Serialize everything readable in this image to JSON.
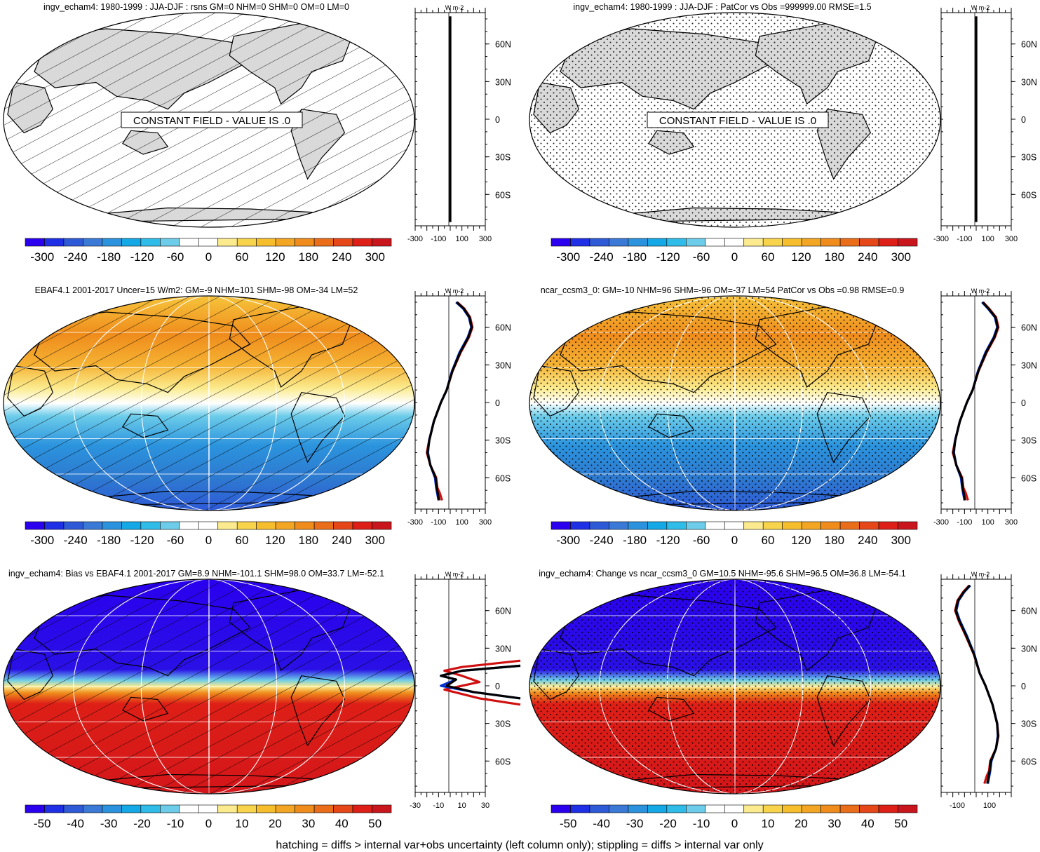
{
  "footer": "hatching = diffs > internal var+obs uncertainty (left column only); stippling = diffs > internal var only",
  "colors": {
    "land": "#d9d9d9",
    "colorbar": [
      "#2a00ee",
      "#1f2fe6",
      "#2e5ad8",
      "#3a7ad6",
      "#2b93dd",
      "#14a9e6",
      "#2fbce8",
      "#6ccce9",
      "#ffffff",
      "#ffffff",
      "#fbeb8e",
      "#f8d44c",
      "#f6be2d",
      "#f3a524",
      "#ef8c1c",
      "#ea6e19",
      "#e54718",
      "#dd1f17",
      "#c9161c"
    ]
  },
  "panels": [
    {
      "id": "p1",
      "title": "ingv_echam4: 1980-1999 : JJA-DJF : rsns GM=0 NHM=0 SHM=0 OM=0 LM=0",
      "field": "constant",
      "pattern": "hatch",
      "constant_label": "CONSTANT FIELD - VALUE IS .0",
      "colorbar_labels": [
        "-300",
        "-240",
        "-180",
        "-120",
        "-60",
        "0",
        "60",
        "120",
        "180",
        "240",
        "300"
      ],
      "profile_xlim": [
        -300,
        300
      ],
      "profile_ticks": [
        "-300",
        "-100",
        "100",
        "300"
      ],
      "profile_units": "W m-2",
      "profile_series": [
        {
          "color": "#1a1a80",
          "x": [
            0,
            0
          ],
          "lat": [
            82,
            -82
          ]
        },
        {
          "color": "#000000",
          "x": [
            0,
            0
          ],
          "lat": [
            82,
            -82
          ]
        }
      ]
    },
    {
      "id": "p2",
      "title": "ingv_echam4: 1980-1999 : JJA-DJF : PatCor vs Obs =999999.00 RMSE=1.5",
      "field": "constant",
      "pattern": "stipple",
      "constant_label": "CONSTANT FIELD - VALUE IS .0",
      "colorbar_labels": [
        "-300",
        "-240",
        "-180",
        "-120",
        "-60",
        "0",
        "60",
        "120",
        "180",
        "240",
        "300"
      ],
      "profile_xlim": [
        -300,
        300
      ],
      "profile_ticks": [
        "-300",
        "-100",
        "100",
        "300"
      ],
      "profile_units": "W m-2",
      "profile_series": [
        {
          "color": "#d01010",
          "x": [
            0,
            0
          ],
          "lat": [
            82,
            -82
          ]
        },
        {
          "color": "#000000",
          "x": [
            0,
            0
          ],
          "lat": [
            82,
            -82
          ]
        }
      ]
    },
    {
      "id": "p3",
      "title": "EBAF4.1 2001-2017 Uncer=15 W/m2: GM=-9 NHM=101 SHM=-98 OM=-34 LM=52",
      "field": "seasonal",
      "pattern": "hatch",
      "colorbar_labels": [
        "-300",
        "-240",
        "-180",
        "-120",
        "-60",
        "0",
        "60",
        "120",
        "180",
        "240",
        "300"
      ],
      "profile_xlim": [
        -300,
        300
      ],
      "profile_ticks": [
        "-300",
        "-100",
        "100",
        "300"
      ],
      "profile_units": "W m-2",
      "profile_series": [
        {
          "color": "#d01010",
          "x": [
            60,
            120,
            170,
            190,
            160,
            90,
            20,
            -30,
            -80,
            -140,
            -180,
            -200,
            -170,
            -120,
            -110,
            -90,
            -70
          ],
          "lat": [
            80,
            75,
            68,
            60,
            52,
            40,
            25,
            10,
            0,
            -15,
            -30,
            -40,
            -50,
            -60,
            -68,
            -72,
            -78
          ]
        },
        {
          "color": "#0030d0",
          "x": [
            50,
            110,
            160,
            180,
            150,
            80,
            15,
            -30,
            -80,
            -140,
            -180,
            -190,
            -170,
            -130,
            -120,
            -100
          ],
          "lat": [
            80,
            75,
            68,
            60,
            52,
            40,
            25,
            10,
            0,
            -15,
            -30,
            -40,
            -50,
            -60,
            -68,
            -78
          ]
        },
        {
          "color": "#000000",
          "x": [
            55,
            115,
            165,
            185,
            155,
            85,
            18,
            -30,
            -80,
            -140,
            -178,
            -195,
            -170,
            -125,
            -115,
            -95
          ],
          "lat": [
            80,
            75,
            68,
            60,
            52,
            40,
            25,
            10,
            0,
            -15,
            -30,
            -40,
            -50,
            -60,
            -68,
            -78
          ]
        }
      ]
    },
    {
      "id": "p4",
      "title": "ncar_ccsm3_0: GM=-10 NHM=96 SHM=-96 OM=-37 LM=54 PatCor vs Obs =0.98 RMSE=0.9",
      "field": "seasonal",
      "pattern": "stipple",
      "colorbar_labels": [
        "-300",
        "-240",
        "-180",
        "-120",
        "-60",
        "0",
        "60",
        "120",
        "180",
        "240",
        "300"
      ],
      "profile_xlim": [
        -300,
        300
      ],
      "profile_ticks": [
        "-300",
        "-100",
        "100",
        "300"
      ],
      "profile_units": "W m-2",
      "profile_series": [
        {
          "color": "#d01010",
          "x": [
            60,
            110,
            170,
            190,
            160,
            90,
            20,
            -30,
            -80,
            -140,
            -180,
            -200,
            -170,
            -120,
            -110,
            -90,
            -70
          ],
          "lat": [
            80,
            75,
            68,
            60,
            52,
            40,
            25,
            10,
            0,
            -15,
            -30,
            -40,
            -50,
            -60,
            -68,
            -72,
            -78
          ]
        },
        {
          "color": "#0030d0",
          "x": [
            50,
            100,
            160,
            180,
            150,
            80,
            15,
            -30,
            -80,
            -140,
            -180,
            -190,
            -170,
            -130,
            -120,
            -100
          ],
          "lat": [
            80,
            75,
            68,
            60,
            52,
            40,
            25,
            10,
            0,
            -15,
            -30,
            -40,
            -50,
            -60,
            -68,
            -78
          ]
        },
        {
          "color": "#000000",
          "x": [
            55,
            105,
            165,
            185,
            155,
            85,
            18,
            -30,
            -80,
            -140,
            -178,
            -195,
            -170,
            -125,
            -115,
            -95
          ],
          "lat": [
            80,
            75,
            68,
            60,
            52,
            40,
            25,
            10,
            0,
            -15,
            -30,
            -40,
            -50,
            -60,
            -68,
            -78
          ]
        }
      ]
    },
    {
      "id": "p5",
      "title": "ingv_echam4: Bias vs EBAF4.1 2001-2017 GM=8.9 NHM=-101.1 SHM=98.0 OM=33.7 LM=-52.1",
      "field": "bias",
      "pattern": "hatch",
      "colorbar_labels": [
        "-50",
        "-40",
        "-30",
        "-20",
        "-10",
        "0",
        "10",
        "20",
        "30",
        "40",
        "50"
      ],
      "profile_xlim": [
        -30,
        30
      ],
      "profile_ticks": [
        "-30",
        "-10",
        "10",
        "30"
      ],
      "profile_units": "W m-2",
      "profile_series": [
        {
          "color": "#d01010",
          "x": [
            60,
            10,
            -5,
            10,
            25,
            -5,
            25,
            60
          ],
          "lat": [
            20,
            15,
            12,
            8,
            3,
            -3,
            -10,
            -15
          ]
        },
        {
          "color": "#0030d0",
          "x": [
            60,
            10,
            -8,
            5,
            -8,
            20,
            60
          ],
          "lat": [
            16,
            12,
            8,
            5,
            0,
            -5,
            -10
          ]
        },
        {
          "color": "#000000",
          "x": [
            60,
            10,
            -8,
            5,
            -3,
            20,
            60
          ],
          "lat": [
            16,
            12,
            8,
            5,
            0,
            -5,
            -10
          ]
        }
      ]
    },
    {
      "id": "p6",
      "title": "ingv_echam4: Change vs ncar_ccsm3_0 GM=10.5 NHM=-95.6 SHM=96.5 OM=36.8 LM=-54.1",
      "field": "bias",
      "pattern": "stipple",
      "colorbar_labels": [
        "-50",
        "-40",
        "-30",
        "-20",
        "-10",
        "0",
        "10",
        "20",
        "30",
        "40",
        "50"
      ],
      "profile_xlim": [
        -300,
        300
      ],
      "profile_ticks": [
        "-100",
        "100"
      ],
      "profile_units": "W m-2",
      "profile_series": [
        {
          "color": "#d01010",
          "x": [
            -60,
            -110,
            -160,
            -180,
            -150,
            -90,
            -20,
            30,
            80,
            140,
            180,
            190,
            170,
            120,
            110,
            90,
            70
          ],
          "lat": [
            80,
            75,
            68,
            60,
            52,
            40,
            25,
            10,
            0,
            -15,
            -30,
            -40,
            -50,
            -60,
            -68,
            -72,
            -78
          ]
        },
        {
          "color": "#0030d0",
          "x": [
            -50,
            -100,
            -150,
            -170,
            -140,
            -80,
            -15,
            30,
            80,
            140,
            180,
            185,
            170,
            130,
            120,
            100
          ],
          "lat": [
            80,
            75,
            68,
            60,
            52,
            40,
            25,
            10,
            0,
            -15,
            -30,
            -40,
            -50,
            -60,
            -68,
            -78
          ]
        },
        {
          "color": "#000000",
          "x": [
            -55,
            -105,
            -155,
            -175,
            -145,
            -85,
            -18,
            30,
            80,
            140,
            178,
            188,
            170,
            125,
            115,
            95
          ],
          "lat": [
            80,
            75,
            68,
            60,
            52,
            40,
            25,
            10,
            0,
            -15,
            -30,
            -40,
            -50,
            -60,
            -68,
            -78
          ]
        }
      ]
    }
  ],
  "lat_labels": [
    "60N",
    "30N",
    "0",
    "30S",
    "60S"
  ],
  "chart_data": [
    {
      "type": "heatmap",
      "title": "ingv_echam4: 1980-1999 : JJA-DJF : rsns GM=0 NHM=0 SHM=0 OM=0 LM=0",
      "note": "CONSTANT FIELD - VALUE IS .0",
      "colorbar": [
        -300,
        300
      ]
    },
    {
      "type": "heatmap",
      "title": "ingv_echam4: 1980-1999 : JJA-DJF : PatCor vs Obs =999999.00 RMSE=1.5",
      "note": "CONSTANT FIELD - VALUE IS .0",
      "colorbar": [
        -300,
        300
      ]
    },
    {
      "type": "heatmap",
      "title": "EBAF4.1 2001-2017 Uncer=15 W/m2: GM=-9 NHM=101 SHM=-98 OM=-34 LM=52",
      "colorbar": [
        -300,
        300
      ]
    },
    {
      "type": "heatmap",
      "title": "ncar_ccsm3_0: GM=-10 NHM=96 SHM=-96 OM=-37 LM=54 PatCor vs Obs =0.98 RMSE=0.9",
      "colorbar": [
        -300,
        300
      ]
    },
    {
      "type": "heatmap",
      "title": "ingv_echam4: Bias vs EBAF4.1 2001-2017 GM=8.9 NHM=-101.1 SHM=98.0 OM=33.7 LM=-52.1",
      "colorbar": [
        -50,
        50
      ]
    },
    {
      "type": "heatmap",
      "title": "ingv_echam4: Change vs ncar_ccsm3_0 GM=10.5 NHM=-95.6 SHM=96.5 OM=36.8 LM=-54.1",
      "colorbar": [
        -50,
        50
      ]
    }
  ]
}
